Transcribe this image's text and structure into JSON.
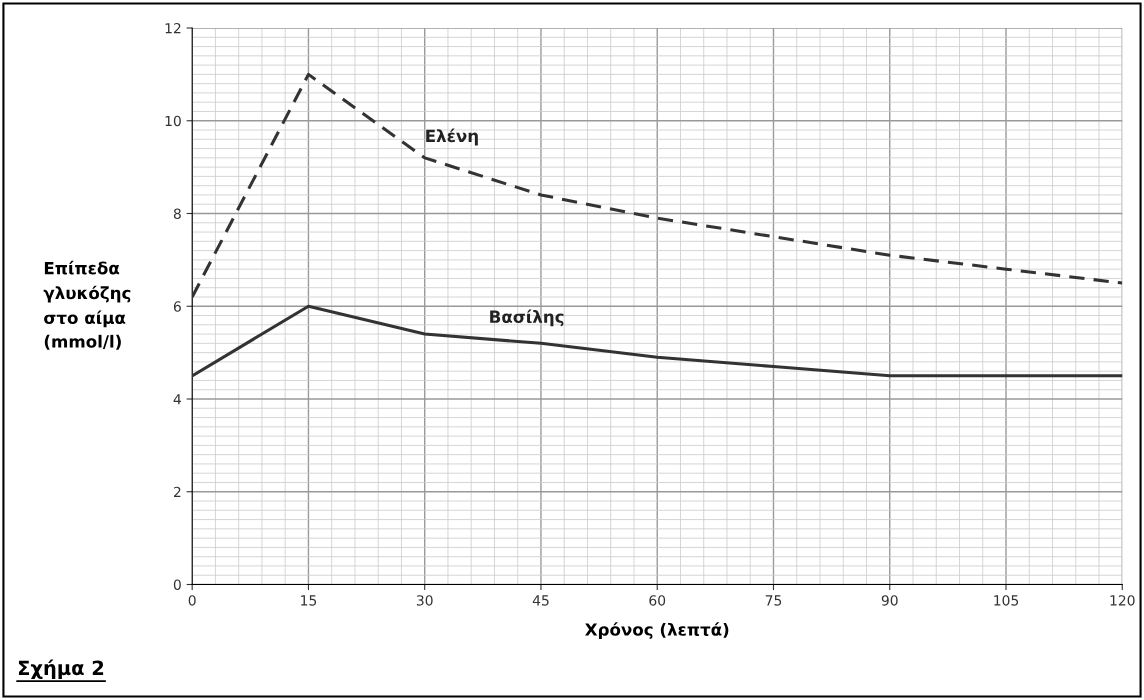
{
  "chart_data": {
    "type": "line",
    "xlabel": "Χρόνος (λεπτά)",
    "ylabel": "Επίπεδα\nγλυκόζης\nστο αίμα\n(mmol/l)",
    "x": [
      0,
      15,
      30,
      45,
      60,
      75,
      90,
      105,
      120
    ],
    "series": [
      {
        "name": "Ελένη",
        "color": "#333333",
        "line_style": "dashed",
        "values": [
          6.2,
          11,
          9.2,
          8.4,
          7.9,
          7.5,
          7.1,
          6.8,
          6.5
        ]
      },
      {
        "name": "Βασίλης",
        "color": "#333333",
        "line_style": "solid",
        "values": [
          4.5,
          6,
          5.4,
          5.2,
          4.9,
          4.7,
          4.5,
          4.5,
          4.5
        ]
      }
    ],
    "xlim": [
      0,
      120
    ],
    "xticks": [
      0,
      15,
      30,
      45,
      60,
      75,
      90,
      105,
      120
    ],
    "ylim": [
      0,
      12
    ],
    "yticks": [
      0,
      2,
      4,
      6,
      8,
      10,
      12
    ],
    "grid": true,
    "legend": false,
    "annotations": [
      "Σχήμα 2"
    ]
  }
}
